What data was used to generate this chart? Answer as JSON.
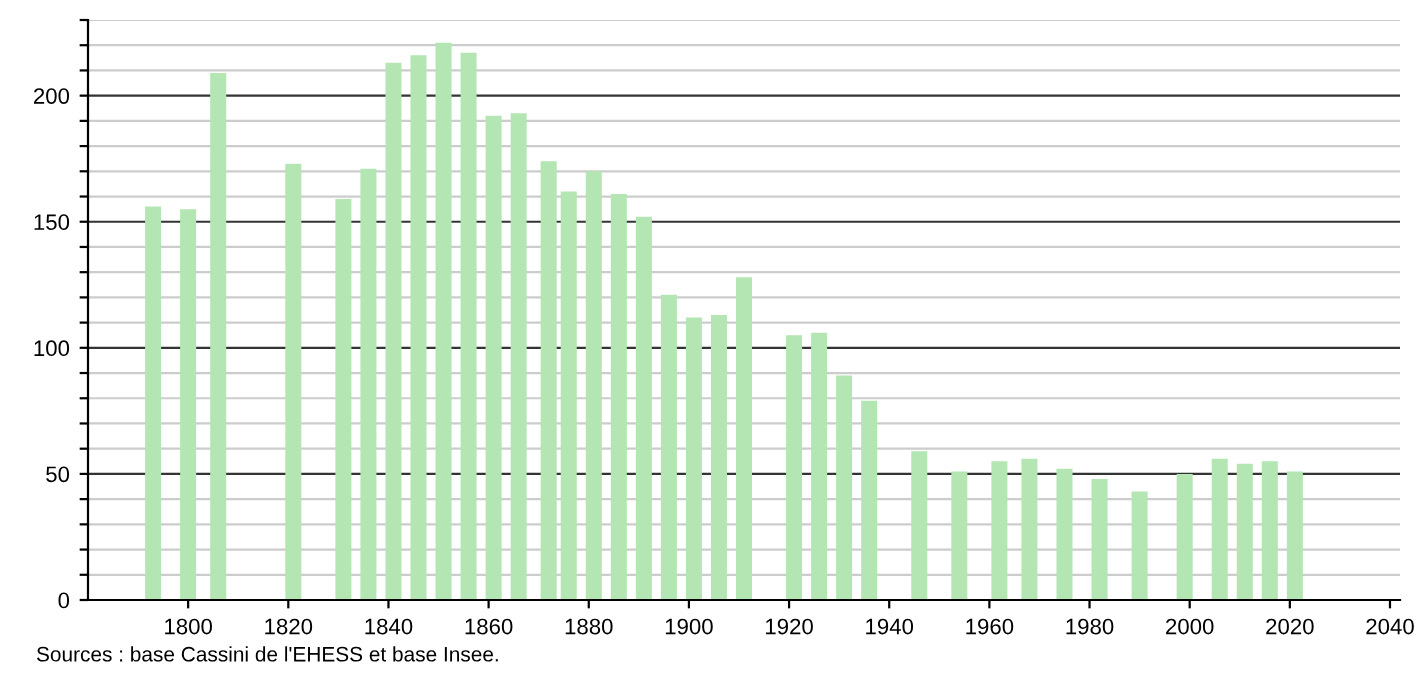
{
  "chart_data": {
    "type": "bar",
    "color": "#b3e6b3",
    "x": [
      1793,
      1800,
      1806,
      1821,
      1831,
      1836,
      1841,
      1846,
      1851,
      1856,
      1861,
      1866,
      1872,
      1876,
      1881,
      1886,
      1891,
      1896,
      1901,
      1906,
      1911,
      1921,
      1926,
      1931,
      1936,
      1946,
      1954,
      1962,
      1968,
      1975,
      1982,
      1990,
      1999,
      2006,
      2011,
      2016,
      2021
    ],
    "values": [
      156,
      155,
      209,
      173,
      159,
      171,
      213,
      216,
      221,
      217,
      192,
      193,
      174,
      162,
      170,
      161,
      152,
      121,
      112,
      113,
      128,
      105,
      106,
      89,
      79,
      59,
      51,
      55,
      56,
      52,
      48,
      43,
      50,
      56,
      54,
      55,
      51
    ],
    "xlim": [
      1780,
      2042
    ],
    "xticks": [
      1800,
      1820,
      1840,
      1860,
      1880,
      1900,
      1920,
      1940,
      1960,
      1980,
      2000,
      2020,
      2040
    ],
    "ylim": [
      0,
      230
    ],
    "yticks": [
      0,
      {
        "value": 10,
        "label": null
      },
      {
        "value": 20,
        "label": null
      },
      {
        "value": 30,
        "label": null
      },
      {
        "value": 40,
        "label": null
      },
      50,
      {
        "value": 60,
        "label": null
      },
      {
        "value": 70,
        "label": null
      },
      {
        "value": 80,
        "label": null
      },
      {
        "value": 90,
        "label": null
      },
      100,
      {
        "value": 110,
        "label": null
      },
      {
        "value": 120,
        "label": null
      },
      {
        "value": 130,
        "label": null
      },
      {
        "value": 140,
        "label": null
      },
      150,
      {
        "value": 160,
        "label": null
      },
      {
        "value": 170,
        "label": null
      },
      {
        "value": 180,
        "label": null
      },
      {
        "value": 190,
        "label": null
      },
      200,
      {
        "value": 210,
        "label": null
      },
      {
        "value": 220,
        "label": null
      },
      {
        "value": 230,
        "label": null
      }
    ],
    "grid": "y",
    "annotations": [
      "Sources : base Cassini de l'EHESS et base Insee."
    ]
  }
}
